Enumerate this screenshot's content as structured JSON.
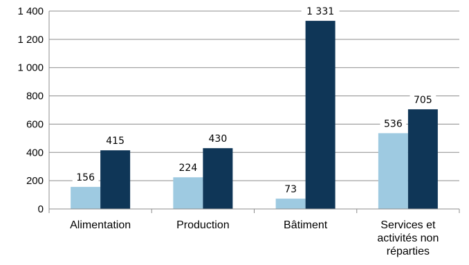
{
  "chart_data": {
    "type": "bar",
    "categories": [
      [
        "Alimentation"
      ],
      [
        "Production"
      ],
      [
        "Bâtiment"
      ],
      [
        "Services et",
        "activités non",
        "réparties"
      ]
    ],
    "series": [
      {
        "color": "#9ecae1",
        "values": [
          156,
          224,
          73,
          536
        ]
      },
      {
        "color": "#0f3657",
        "values": [
          415,
          430,
          1331,
          705
        ]
      }
    ],
    "data_labels": [
      [
        "156",
        "224",
        "73",
        "536"
      ],
      [
        "415",
        "430",
        "1 331",
        "705"
      ]
    ],
    "yticks": [
      {
        "value": 0,
        "label": "0"
      },
      {
        "value": 200,
        "label": "200"
      },
      {
        "value": 400,
        "label": "400"
      },
      {
        "value": 600,
        "label": "600"
      },
      {
        "value": 800,
        "label": "800"
      },
      {
        "value": 1000,
        "label": "1 000"
      },
      {
        "value": 1200,
        "label": "1 200"
      },
      {
        "value": 1400,
        "label": "1 400"
      }
    ],
    "ylim": [
      0,
      1400
    ],
    "grid": true,
    "legend": "none",
    "title": "",
    "xlabel": "",
    "ylabel": ""
  }
}
